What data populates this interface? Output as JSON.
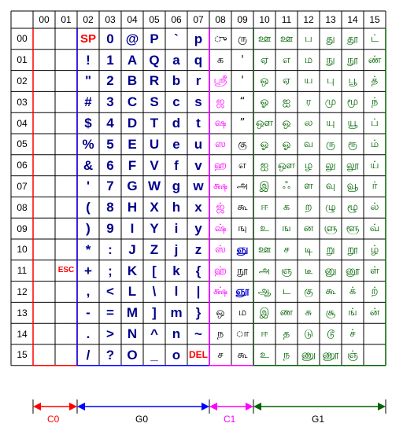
{
  "col_headers": [
    "00",
    "01",
    "02",
    "03",
    "04",
    "05",
    "06",
    "07",
    "08",
    "09",
    "10",
    "11",
    "12",
    "13",
    "14",
    "15"
  ],
  "row_headers": [
    "00",
    "01",
    "02",
    "03",
    "04",
    "05",
    "06",
    "07",
    "08",
    "09",
    "10",
    "11",
    "12",
    "13",
    "14",
    "15"
  ],
  "columns": [
    [
      "",
      "",
      "",
      "",
      "",
      "",
      "",
      "",
      "",
      "",
      "",
      "",
      "",
      "",
      "",
      ""
    ],
    [
      "",
      "",
      "",
      "",
      "",
      "",
      "",
      "",
      "",
      "",
      "",
      "ESC",
      "",
      "",
      "",
      ""
    ],
    [
      "SP",
      "!",
      "\"",
      "#",
      "$",
      "%",
      "&",
      "'",
      "(",
      ")",
      "*",
      "+",
      ",",
      "-",
      ".",
      "/"
    ],
    [
      "0",
      "1",
      "2",
      "3",
      "4",
      "5",
      "6",
      "7",
      "8",
      "9",
      ":",
      ";",
      "<",
      "=",
      ">",
      "?"
    ],
    [
      "@",
      "A",
      "B",
      "C",
      "D",
      "E",
      "F",
      "G",
      "H",
      "I",
      "J",
      "K",
      "L",
      "M",
      "N",
      "O"
    ],
    [
      "P",
      "Q",
      "R",
      "S",
      "T",
      "U",
      "V",
      "W",
      "X",
      "Y",
      "Z",
      "[",
      "\\",
      "]",
      "^",
      "_"
    ],
    [
      "`",
      "a",
      "b",
      "c",
      "d",
      "e",
      "f",
      "g",
      "h",
      "i",
      "j",
      "k",
      "l",
      "m",
      "n",
      "o"
    ],
    [
      "p",
      "q",
      "r",
      "s",
      "t",
      "u",
      "v",
      "w",
      "x",
      "y",
      "z",
      "{",
      "|",
      "}",
      "~",
      "DEL"
    ],
    [
      "ு",
      "க",
      "ஸ்ரீ",
      "ஜ",
      "ஷ",
      "ஸ",
      "ஹ",
      "க்ஷ",
      "ஜ்",
      "ஷ்",
      "ஸ்",
      "ஹ்",
      "க்ஷ்",
      "ஒ",
      "ந",
      "ச"
    ],
    [
      "ரு",
      "'",
      "'",
      "“",
      "”",
      "கு",
      "எ",
      "அ",
      "கூ",
      "ஙு",
      "ஞு",
      "நூ",
      "ஞூ",
      "ம",
      "ா",
      "கூ"
    ],
    [
      "ஊ",
      "ஏ",
      "ஒ",
      "ஓ",
      "ஔ",
      "ஓ",
      "ஐ",
      "இ",
      "ஈ",
      "உ",
      "ஊ",
      "அ",
      "ஆ",
      "இ",
      "ஈ",
      "உ"
    ],
    [
      "ஊ",
      "எ",
      "ஏ",
      "ஐ",
      "ஒ",
      "ஓ",
      "ஔ",
      "ஃ",
      "க",
      "ங",
      "ச",
      "ஞ",
      "ட",
      "ண",
      "த",
      "ந"
    ],
    [
      "ப",
      "ம",
      "ய",
      "ர",
      "ல",
      "வ",
      "ழ",
      "ள",
      "ற",
      "ன",
      "டி",
      "டீ",
      "கு",
      "சு",
      "டு",
      "ணு"
    ],
    [
      "து",
      "நு",
      "பு",
      "மு",
      "யு",
      "ரு",
      "லு",
      "வு",
      "ழு",
      "ளு",
      "று",
      "னு",
      "கூ",
      "சூ",
      "டூ",
      "ணூ"
    ],
    [
      "தூ",
      "நூ",
      "பூ",
      "மூ",
      "யூ",
      "ரூ",
      "லூ",
      "வூ",
      "ழூ",
      "ளூ",
      "றூ",
      "னூ",
      "க்",
      "ங்",
      "ச்",
      "ஞ்"
    ],
    [
      "ட்",
      "ண்",
      "த்",
      "ந்",
      "ப்",
      "ம்",
      "ய்",
      "ர்",
      "ல்",
      "வ்",
      "ழ்",
      "ள்",
      "ற்",
      "ன்",
      "",
      ""
    ]
  ],
  "ranges": [
    {
      "name": "C0",
      "color": "#ff0000"
    },
    {
      "name": "G0",
      "color": "#0000ff"
    },
    {
      "name": "C1",
      "color": "#ff00ff"
    },
    {
      "name": "G1",
      "color": "#006400"
    }
  ]
}
